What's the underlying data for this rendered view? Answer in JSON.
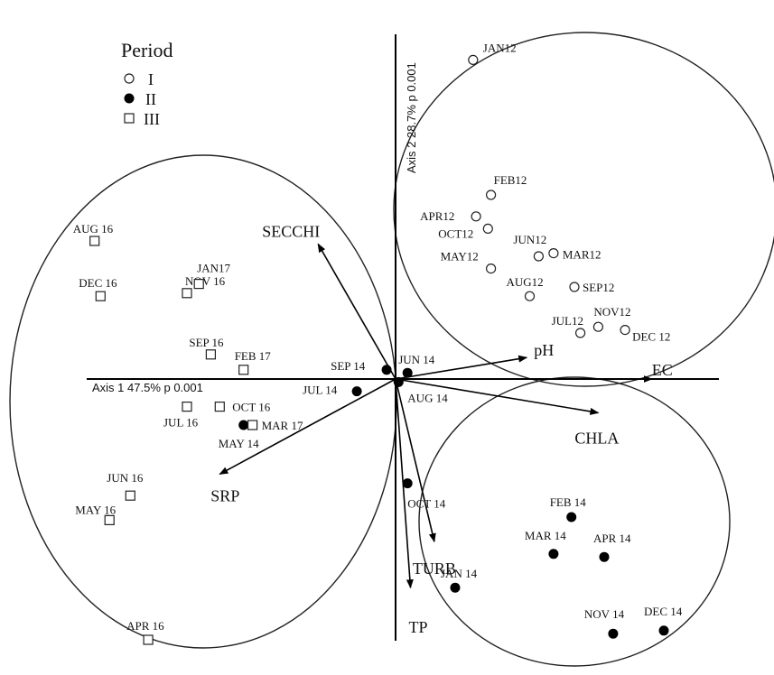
{
  "chart_data": {
    "type": "scatter",
    "title": "",
    "xlabel": "Axis 1 47.5% p 0.001",
    "ylabel": "Axis 2 28.7% p 0.001",
    "legend": {
      "title": "Period",
      "placement": "top-left",
      "entries": [
        {
          "label": "I",
          "marker": "open-circle"
        },
        {
          "label": "II",
          "marker": "filled-circle"
        },
        {
          "label": "III",
          "marker": "open-square"
        }
      ]
    },
    "series": [
      {
        "name": "I",
        "marker": "open-circle",
        "points": [
          {
            "label": "JAN12",
            "x": 0.26,
            "y": 1.04
          },
          {
            "label": "FEB12",
            "x": 0.32,
            "y": 0.6
          },
          {
            "label": "APR12",
            "x": 0.27,
            "y": 0.53
          },
          {
            "label": "OCT12",
            "x": 0.31,
            "y": 0.49
          },
          {
            "label": "MAY12",
            "x": 0.32,
            "y": 0.36
          },
          {
            "label": "JUN12",
            "x": 0.48,
            "y": 0.4
          },
          {
            "label": "MAR12",
            "x": 0.53,
            "y": 0.41
          },
          {
            "label": "AUG12",
            "x": 0.45,
            "y": 0.27
          },
          {
            "label": "SEP12",
            "x": 0.6,
            "y": 0.3
          },
          {
            "label": "JUL12",
            "x": 0.62,
            "y": 0.15
          },
          {
            "label": "NOV12",
            "x": 0.68,
            "y": 0.17
          },
          {
            "label": "DEC 12",
            "x": 0.77,
            "y": 0.16
          }
        ]
      },
      {
        "name": "II",
        "marker": "filled-circle",
        "points": [
          {
            "label": "SEP 14",
            "x": -0.03,
            "y": 0.03
          },
          {
            "label": "JUN 14",
            "x": 0.04,
            "y": 0.02
          },
          {
            "label": "AUG 14",
            "x": 0.01,
            "y": -0.01
          },
          {
            "label": "JUL 14",
            "x": -0.13,
            "y": -0.04
          },
          {
            "label": "MAY 14",
            "x": -0.51,
            "y": -0.15
          },
          {
            "label": "OCT 14",
            "x": 0.04,
            "y": -0.34
          },
          {
            "label": "FEB 14",
            "x": 0.59,
            "y": -0.45
          },
          {
            "label": "MAR 14",
            "x": 0.53,
            "y": -0.57
          },
          {
            "label": "APR 14",
            "x": 0.7,
            "y": -0.58
          },
          {
            "label": "JAN 14",
            "x": 0.2,
            "y": -0.68
          },
          {
            "label": "NOV 14",
            "x": 0.73,
            "y": -0.83
          },
          {
            "label": "DEC 14",
            "x": 0.9,
            "y": -0.82
          }
        ]
      },
      {
        "name": "III",
        "marker": "open-square",
        "points": [
          {
            "label": "AUG 16",
            "x": -1.01,
            "y": 0.45
          },
          {
            "label": "DEC 16",
            "x": -0.99,
            "y": 0.27
          },
          {
            "label": "NOV 16",
            "x": -0.7,
            "y": 0.28
          },
          {
            "label": "JAN17",
            "x": -0.66,
            "y": 0.31
          },
          {
            "label": "SEP 16",
            "x": -0.62,
            "y": 0.08
          },
          {
            "label": "FEB 17",
            "x": -0.51,
            "y": 0.03
          },
          {
            "label": "OCT 16",
            "x": -0.59,
            "y": -0.09
          },
          {
            "label": "JUL 16",
            "x": -0.7,
            "y": -0.09
          },
          {
            "label": "MAR 17",
            "x": -0.48,
            "y": -0.15
          },
          {
            "label": "JUN 16",
            "x": -0.89,
            "y": -0.38
          },
          {
            "label": "MAY 16",
            "x": -0.96,
            "y": -0.46
          },
          {
            "label": "APR 16",
            "x": -0.83,
            "y": -0.85
          }
        ]
      }
    ],
    "vectors": [
      {
        "label": "SECCHI",
        "x": -0.26,
        "y": 0.44
      },
      {
        "label": "pH",
        "x": 0.44,
        "y": 0.07
      },
      {
        "label": "EC",
        "x": 0.86,
        "y": 0.0
      },
      {
        "label": "CHLA",
        "x": 0.68,
        "y": -0.11
      },
      {
        "label": "SRP",
        "x": -0.59,
        "y": -0.31
      },
      {
        "label": "TURB",
        "x": 0.13,
        "y": -0.53
      },
      {
        "label": "TP",
        "x": 0.05,
        "y": -0.68
      }
    ],
    "grid": false
  }
}
